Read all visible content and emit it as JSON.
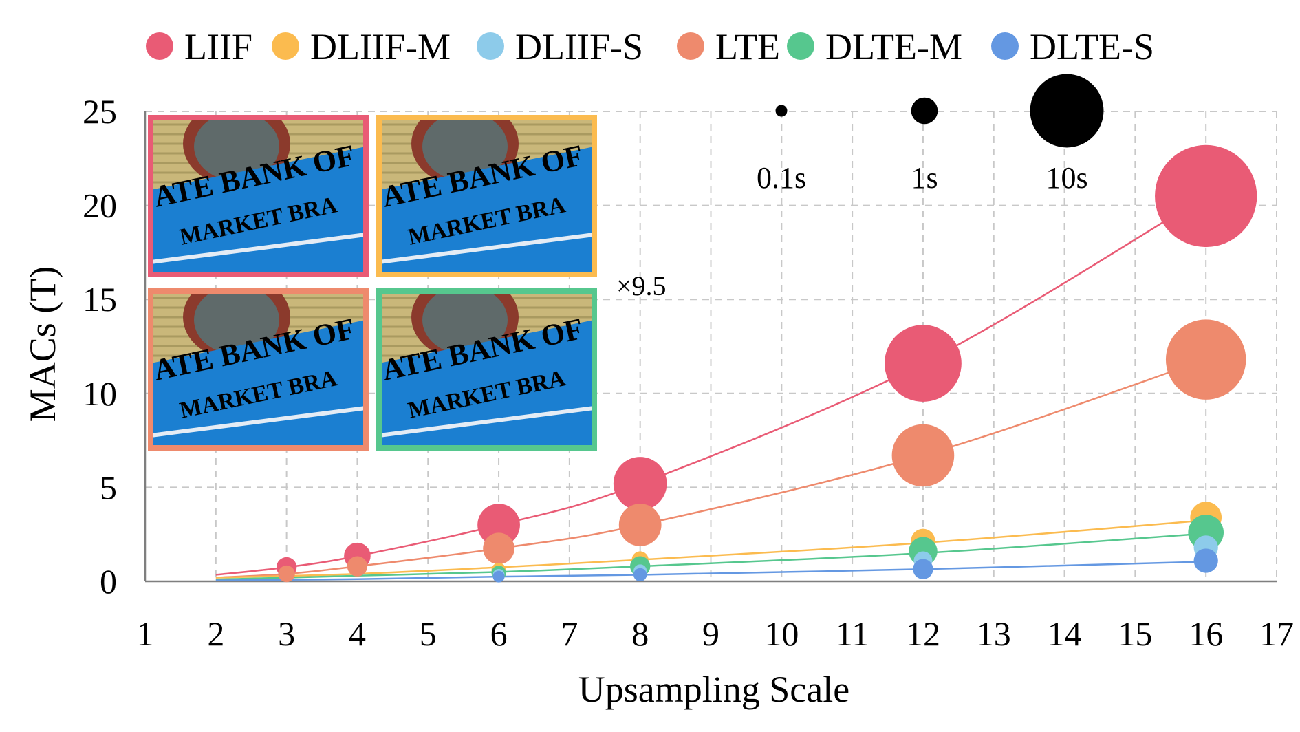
{
  "chart_data": {
    "type": "scatter",
    "xlabel": "Upsampling Scale",
    "ylabel": "MACs (T)",
    "xlim": [
      1,
      17
    ],
    "ylim": [
      0,
      25
    ],
    "xticks": [
      "1",
      "2",
      "3",
      "4",
      "5",
      "6",
      "7",
      "8",
      "9",
      "10",
      "11",
      "12",
      "13",
      "14",
      "15",
      "16",
      "17"
    ],
    "yticks": [
      "0",
      "5",
      "10",
      "15",
      "20",
      "25"
    ],
    "grid": true,
    "legend_position": "top",
    "size_encoding": "runtime (s)",
    "size_legend": [
      {
        "label": "0.1s",
        "value": 0.1
      },
      {
        "label": "1s",
        "value": 1
      },
      {
        "label": "10s",
        "value": 10
      }
    ],
    "annotation": "×9.5",
    "series": [
      {
        "name": "LIIF",
        "color": "#e95b75",
        "points": [
          {
            "x": 3,
            "y": 0.75,
            "t": 0.5
          },
          {
            "x": 4,
            "y": 1.35,
            "t": 1
          },
          {
            "x": 6,
            "y": 3.0,
            "t": 3
          },
          {
            "x": 8,
            "y": 5.2,
            "t": 5
          },
          {
            "x": 12,
            "y": 11.6,
            "t": 11
          },
          {
            "x": 16,
            "y": 20.5,
            "t": 20
          }
        ]
      },
      {
        "name": "DLIIF-M",
        "color": "#fbbb4f",
        "points": [
          {
            "x": 6,
            "y": 0.6,
            "t": 0.2
          },
          {
            "x": 8,
            "y": 1.15,
            "t": 0.3
          },
          {
            "x": 12,
            "y": 2.15,
            "t": 0.8
          },
          {
            "x": 16,
            "y": 3.4,
            "t": 1.5
          }
        ]
      },
      {
        "name": "DLIIF-S",
        "color": "#8dcbea",
        "points": [
          {
            "x": 6,
            "y": 0.35,
            "t": 0.1
          },
          {
            "x": 8,
            "y": 0.55,
            "t": 0.15
          },
          {
            "x": 12,
            "y": 1.1,
            "t": 0.4
          },
          {
            "x": 16,
            "y": 1.8,
            "t": 0.8
          }
        ]
      },
      {
        "name": "LTE",
        "color": "#ee8a6d",
        "points": [
          {
            "x": 3,
            "y": 0.4,
            "t": 0.3
          },
          {
            "x": 4,
            "y": 0.8,
            "t": 0.5
          },
          {
            "x": 6,
            "y": 1.75,
            "t": 1.5
          },
          {
            "x": 8,
            "y": 3.0,
            "t": 3
          },
          {
            "x": 12,
            "y": 6.7,
            "t": 7
          },
          {
            "x": 16,
            "y": 11.8,
            "t": 12
          }
        ]
      },
      {
        "name": "DLTE-M",
        "color": "#56c78e",
        "points": [
          {
            "x": 6,
            "y": 0.45,
            "t": 0.2
          },
          {
            "x": 8,
            "y": 0.8,
            "t": 0.5
          },
          {
            "x": 12,
            "y": 1.6,
            "t": 1.2
          },
          {
            "x": 16,
            "y": 2.6,
            "t": 2
          }
        ]
      },
      {
        "name": "DLTE-S",
        "color": "#6498e2",
        "points": [
          {
            "x": 6,
            "y": 0.25,
            "t": 0.1
          },
          {
            "x": 8,
            "y": 0.35,
            "t": 0.15
          },
          {
            "x": 12,
            "y": 0.65,
            "t": 0.5
          },
          {
            "x": 16,
            "y": 1.1,
            "t": 0.8
          }
        ]
      }
    ],
    "trend_lines": [
      {
        "series": "LIIF",
        "points": [
          [
            2,
            0.35
          ],
          [
            3,
            0.75
          ],
          [
            4,
            1.35
          ],
          [
            6,
            3.0
          ],
          [
            8,
            5.2
          ],
          [
            12,
            11.6
          ],
          [
            16,
            20.5
          ]
        ]
      },
      {
        "series": "LTE",
        "points": [
          [
            2,
            0.2
          ],
          [
            3,
            0.4
          ],
          [
            4,
            0.8
          ],
          [
            6,
            1.75
          ],
          [
            8,
            3.0
          ],
          [
            12,
            6.7
          ],
          [
            16,
            11.8
          ]
        ]
      },
      {
        "series": "DLIIF-M",
        "points": [
          [
            2,
            0.2
          ],
          [
            4,
            0.4
          ],
          [
            6,
            0.75
          ],
          [
            8,
            1.15
          ],
          [
            12,
            2.05
          ],
          [
            16,
            3.25
          ]
        ]
      },
      {
        "series": "DLTE-M",
        "points": [
          [
            2,
            0.1
          ],
          [
            4,
            0.3
          ],
          [
            6,
            0.5
          ],
          [
            8,
            0.8
          ],
          [
            12,
            1.5
          ],
          [
            16,
            2.55
          ]
        ]
      },
      {
        "series": "DLTE-S",
        "points": [
          [
            2,
            0.05
          ],
          [
            4,
            0.12
          ],
          [
            6,
            0.25
          ],
          [
            8,
            0.35
          ],
          [
            12,
            0.65
          ],
          [
            16,
            1.05
          ]
        ]
      }
    ],
    "inset_images": [
      {
        "text_line1": "ATE BANK OF",
        "text_line2": "MARKET BRA",
        "border_color": "#e95b75"
      },
      {
        "text_line1": "ATE BANK OF",
        "text_line2": "MARKET BRA",
        "border_color": "#fbbb4f"
      },
      {
        "text_line1": "ATE BANK OF",
        "text_line2": "MARKET BRA",
        "border_color": "#ee8a6d"
      },
      {
        "text_line1": "ATE BANK OF",
        "text_line2": "MARKET BRA",
        "border_color": "#56c78e"
      }
    ]
  }
}
